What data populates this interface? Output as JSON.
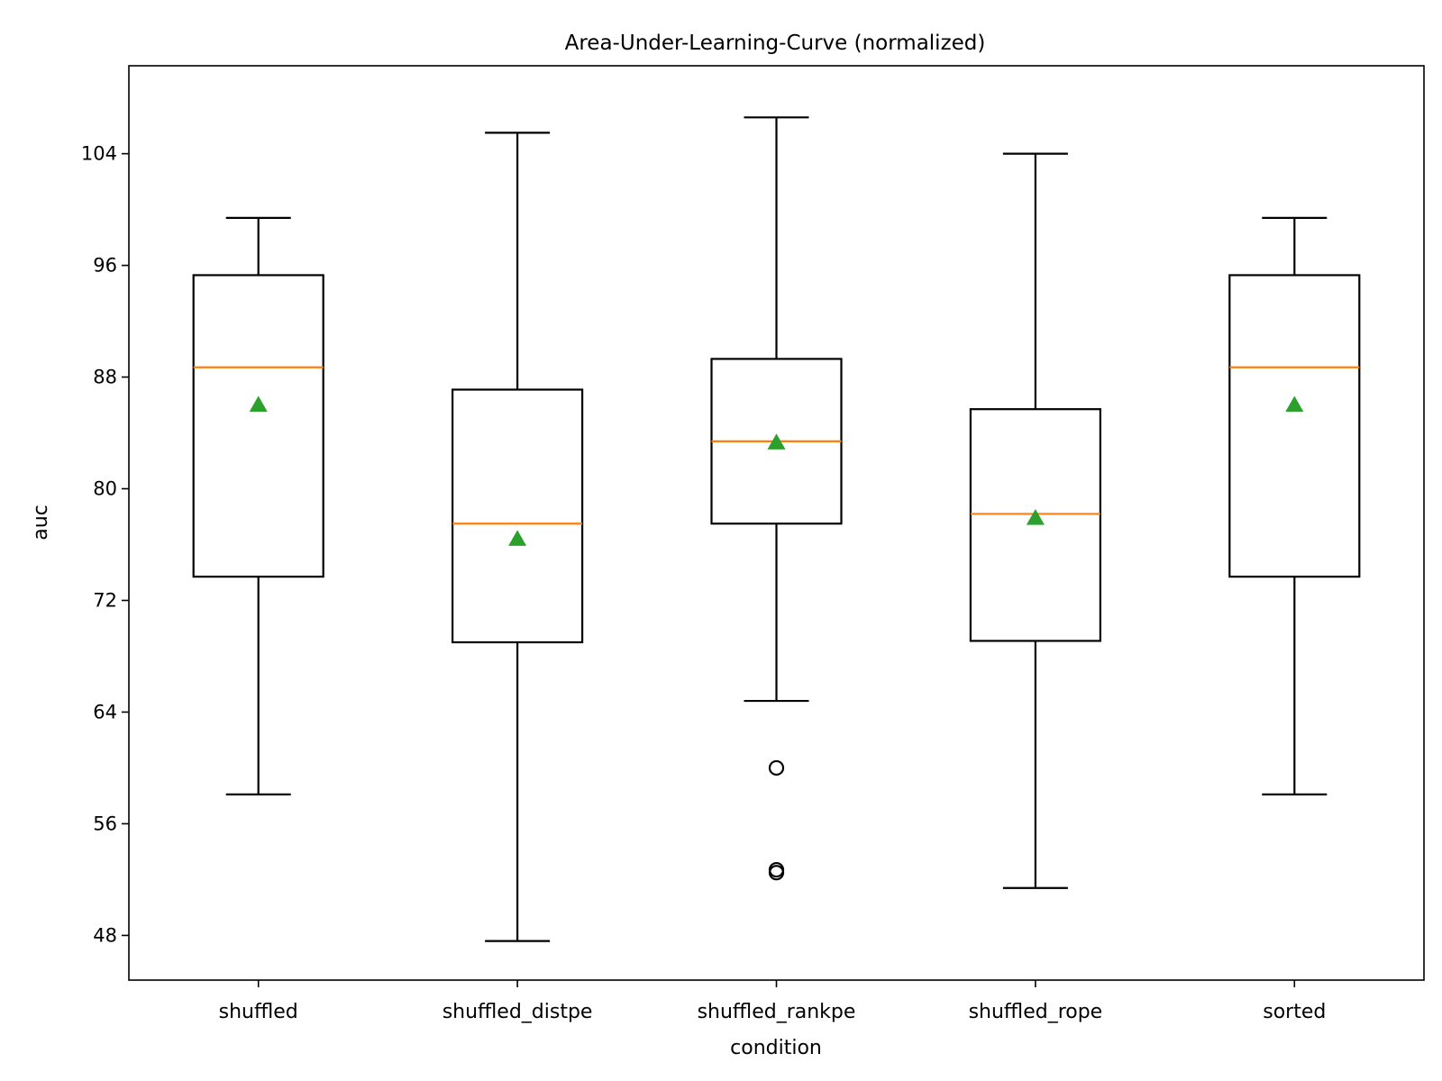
{
  "chart_data": {
    "type": "box",
    "title": "Area-Under-Learning-Curve (normalized)",
    "xlabel": "condition",
    "ylabel": "auc",
    "ylim": [
      44.8,
      110.3
    ],
    "yticks": [
      48,
      56,
      64,
      72,
      80,
      88,
      96,
      104
    ],
    "grid": false,
    "categories": [
      "shuffled",
      "shuffled_distpe",
      "shuffled_rankpe",
      "shuffled_rope",
      "sorted"
    ],
    "boxes": [
      {
        "whisker_low": 58.1,
        "q1": 73.7,
        "median": 88.7,
        "q3": 95.3,
        "whisker_high": 99.4,
        "mean": 86.0,
        "outliers": []
      },
      {
        "whisker_low": 47.6,
        "q1": 69.0,
        "median": 77.5,
        "q3": 87.1,
        "whisker_high": 105.5,
        "mean": 76.4,
        "outliers": []
      },
      {
        "whisker_low": 64.8,
        "q1": 77.5,
        "median": 83.4,
        "q3": 89.3,
        "whisker_high": 106.6,
        "mean": 83.3,
        "outliers": [
          60.0,
          52.5,
          52.7
        ]
      },
      {
        "whisker_low": 51.4,
        "q1": 69.1,
        "median": 78.2,
        "q3": 85.7,
        "whisker_high": 104.0,
        "mean": 77.9,
        "outliers": []
      },
      {
        "whisker_low": 58.1,
        "q1": 73.7,
        "median": 88.7,
        "q3": 95.3,
        "whisker_high": 99.4,
        "mean": 86.0,
        "outliers": []
      }
    ],
    "colors": {
      "box": "#000000",
      "median": "#ff7f0e",
      "mean": "#2ca02c",
      "outlier": "#000000"
    }
  }
}
